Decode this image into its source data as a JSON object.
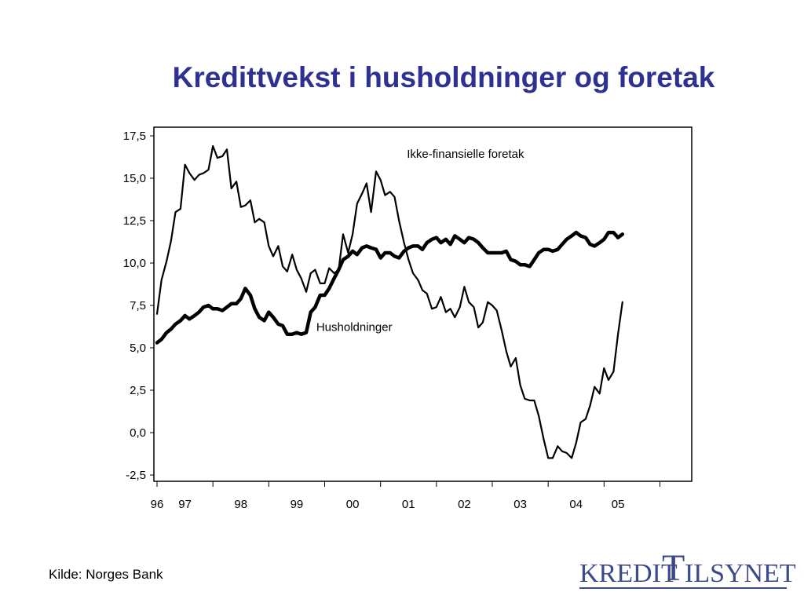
{
  "title": "Kredittvekst i husholdninger og foretak",
  "source": "Kilde: Norges Bank",
  "logo": {
    "text": "KREDITTILSYNET",
    "left": "KREDIT",
    "letter": "T",
    "right": "ILSYNET",
    "color": "#3b4a8a"
  },
  "colors": {
    "title": "#2e3192",
    "lines": "#000000"
  },
  "chart_data": {
    "type": "line",
    "title": "Kredittvekst i husholdninger og foretak",
    "xlabel": "",
    "ylabel": "",
    "ylim": [
      -2.5,
      17.5
    ],
    "yticks": [
      -2.5,
      0.0,
      2.5,
      5.0,
      7.5,
      10.0,
      12.5,
      15.0,
      17.5
    ],
    "ytick_labels": [
      "-2,5",
      "0,0",
      "2,5",
      "5,0",
      "7,5",
      "10,0",
      "12,5",
      "15,0",
      "17,5"
    ],
    "xlim": [
      1996.0,
      2005.33
    ],
    "xtick_labels": [
      "96",
      "97",
      "98",
      "99",
      "00",
      "01",
      "02",
      "03",
      "04",
      "05"
    ],
    "xtick_positions": [
      1996.0,
      1996.5,
      1997.5,
      1998.5,
      1999.5,
      2000.5,
      2001.5,
      2002.5,
      2003.5,
      2004.25
    ],
    "grid": false,
    "annotations": [
      {
        "text": "Ikke-finansielle foretak",
        "x": 2000.5,
        "y": 16.2
      },
      {
        "text": "Husholdninger",
        "x": 1998.85,
        "y": 6.0
      }
    ],
    "series": [
      {
        "name": "Ikke-finansielle foretak",
        "line_weight": "thin",
        "x": [
          1996.0,
          1996.08,
          1996.17,
          1996.25,
          1996.33,
          1996.42,
          1996.5,
          1996.58,
          1996.67,
          1996.75,
          1996.83,
          1996.92,
          1997.0,
          1997.08,
          1997.17,
          1997.25,
          1997.33,
          1997.42,
          1997.5,
          1997.58,
          1997.67,
          1997.75,
          1997.83,
          1997.92,
          1998.0,
          1998.08,
          1998.17,
          1998.25,
          1998.33,
          1998.42,
          1998.5,
          1998.58,
          1998.67,
          1998.75,
          1998.83,
          1998.92,
          1999.0,
          1999.08,
          1999.17,
          1999.25,
          1999.33,
          1999.42,
          1999.5,
          1999.58,
          1999.67,
          1999.75,
          1999.83,
          1999.92,
          2000.0,
          2000.08,
          2000.17,
          2000.25,
          2000.33,
          2000.42,
          2000.5,
          2000.58,
          2000.67,
          2000.75,
          2000.83,
          2000.92,
          2001.0,
          2001.08,
          2001.17,
          2001.25,
          2001.33,
          2001.42,
          2001.5,
          2001.58,
          2001.67,
          2001.75,
          2001.83,
          2001.92,
          2002.0,
          2002.08,
          2002.17,
          2002.25,
          2002.33,
          2002.42,
          2002.5,
          2002.58,
          2002.67,
          2002.75,
          2002.83,
          2002.92,
          2003.0,
          2003.08,
          2003.17,
          2003.25,
          2003.33,
          2003.42,
          2003.5,
          2003.58,
          2003.67,
          2003.75,
          2003.83,
          2003.92,
          2004.0,
          2004.08,
          2004.17,
          2004.25,
          2004.33
        ],
        "values": [
          7.0,
          9.0,
          10.1,
          11.3,
          13.0,
          13.2,
          15.8,
          15.3,
          14.9,
          15.2,
          15.3,
          15.5,
          16.9,
          16.2,
          16.3,
          16.7,
          14.4,
          14.8,
          13.3,
          13.4,
          13.7,
          12.4,
          12.6,
          12.4,
          11.0,
          10.4,
          11.0,
          9.8,
          9.5,
          10.5,
          9.6,
          9.1,
          8.3,
          9.4,
          9.6,
          8.8,
          8.8,
          9.7,
          9.4,
          9.6,
          11.7,
          10.6,
          11.7,
          13.5,
          14.1,
          14.7,
          13.0,
          15.4,
          14.9,
          14.0,
          14.2,
          13.9,
          12.5,
          11.2,
          10.2,
          9.4,
          9.0,
          8.4,
          8.2,
          7.3,
          7.4,
          8.0,
          7.1,
          7.3,
          6.8,
          7.4,
          8.6,
          7.7,
          7.4,
          6.2,
          6.5,
          7.7,
          7.5,
          7.2,
          6.0,
          4.8,
          3.9,
          4.4,
          2.8,
          2.0,
          1.9,
          1.9,
          1.0,
          -0.4,
          -1.5,
          -1.5,
          -0.8,
          -1.1,
          -1.2,
          -1.5,
          -0.6,
          0.6,
          0.8,
          1.6,
          2.7,
          2.3,
          3.8,
          3.1,
          3.6,
          5.8,
          7.7
        ]
      },
      {
        "name": "Husholdninger",
        "line_weight": "thick",
        "x": [
          1996.0,
          1996.08,
          1996.17,
          1996.25,
          1996.33,
          1996.42,
          1996.5,
          1996.58,
          1996.67,
          1996.75,
          1996.83,
          1996.92,
          1997.0,
          1997.08,
          1997.17,
          1997.25,
          1997.33,
          1997.42,
          1997.5,
          1997.58,
          1997.67,
          1997.75,
          1997.83,
          1997.92,
          1998.0,
          1998.08,
          1998.17,
          1998.25,
          1998.33,
          1998.42,
          1998.5,
          1998.58,
          1998.67,
          1998.75,
          1998.83,
          1998.92,
          1999.0,
          1999.08,
          1999.17,
          1999.25,
          1999.33,
          1999.42,
          1999.5,
          1999.58,
          1999.67,
          1999.75,
          1999.83,
          1999.92,
          2000.0,
          2000.08,
          2000.17,
          2000.25,
          2000.33,
          2000.42,
          2000.5,
          2000.58,
          2000.67,
          2000.75,
          2000.83,
          2000.92,
          2001.0,
          2001.08,
          2001.17,
          2001.25,
          2001.33,
          2001.42,
          2001.5,
          2001.58,
          2001.67,
          2001.75,
          2001.83,
          2001.92,
          2002.0,
          2002.08,
          2002.17,
          2002.25,
          2002.33,
          2002.42,
          2002.5,
          2002.58,
          2002.67,
          2002.75,
          2002.83,
          2002.92,
          2003.0,
          2003.08,
          2003.17,
          2003.25,
          2003.33,
          2003.42,
          2003.5,
          2003.58,
          2003.67,
          2003.75,
          2003.83,
          2003.92,
          2004.0,
          2004.08,
          2004.17,
          2004.25,
          2004.33
        ],
        "values": [
          5.3,
          5.5,
          5.9,
          6.1,
          6.4,
          6.6,
          6.9,
          6.7,
          6.9,
          7.1,
          7.4,
          7.5,
          7.3,
          7.3,
          7.2,
          7.4,
          7.6,
          7.6,
          7.9,
          8.5,
          8.1,
          7.3,
          6.8,
          6.6,
          7.1,
          6.8,
          6.4,
          6.3,
          5.8,
          5.8,
          5.9,
          5.8,
          5.9,
          7.1,
          7.4,
          8.1,
          8.1,
          8.5,
          9.1,
          9.6,
          10.2,
          10.4,
          10.7,
          10.5,
          10.9,
          11.0,
          10.9,
          10.8,
          10.3,
          10.6,
          10.6,
          10.4,
          10.3,
          10.7,
          10.9,
          11.0,
          11.0,
          10.8,
          11.2,
          11.4,
          11.5,
          11.2,
          11.4,
          11.1,
          11.6,
          11.4,
          11.2,
          11.5,
          11.4,
          11.2,
          10.9,
          10.6,
          10.6,
          10.6,
          10.6,
          10.7,
          10.2,
          10.1,
          9.9,
          9.9,
          9.8,
          10.2,
          10.6,
          10.8,
          10.8,
          10.7,
          10.8,
          11.1,
          11.4,
          11.6,
          11.8,
          11.6,
          11.5,
          11.1,
          11.0,
          11.2,
          11.4,
          11.8,
          11.8,
          11.5,
          11.7
        ]
      }
    ]
  }
}
